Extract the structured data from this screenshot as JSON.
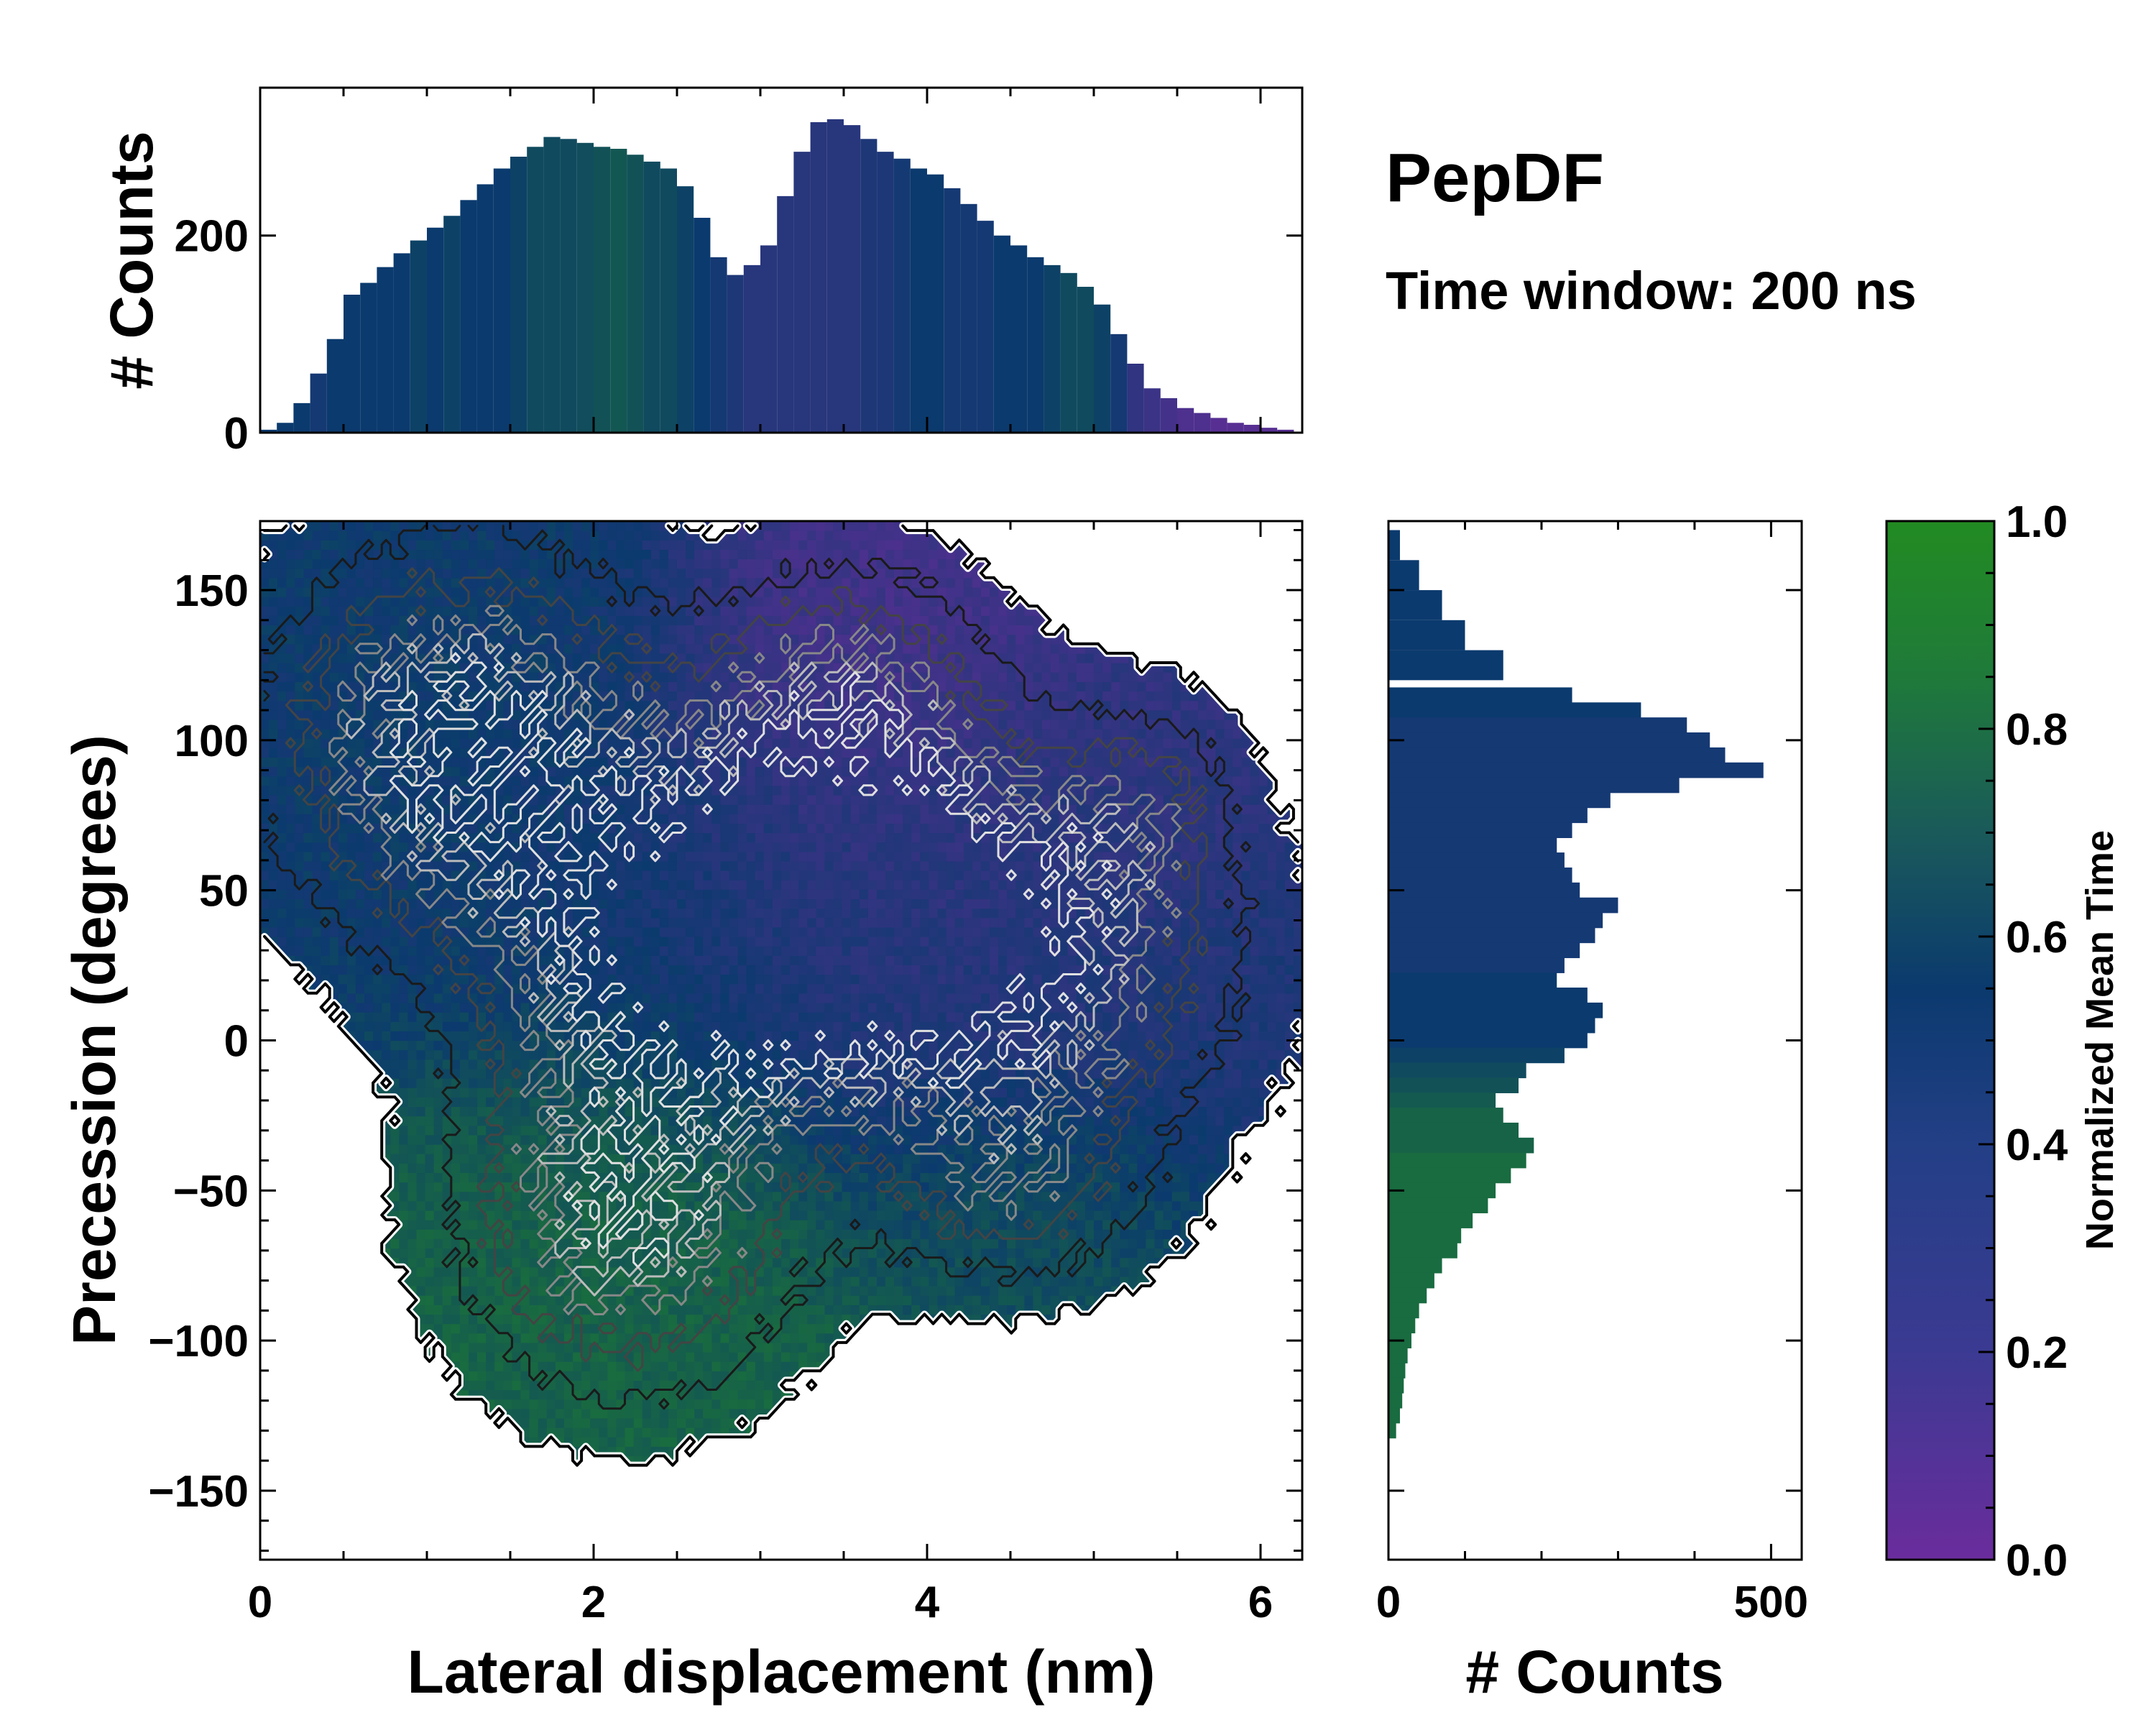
{
  "title": "PepDF",
  "subtitle": "Time window: 200 ns",
  "colors": {
    "low": "#6a2c9c",
    "mid": "#0b3a6e",
    "high": "#228b22",
    "contour_dark": "#000000",
    "contour_light": "#d0d0d0"
  },
  "chart_data": [
    {
      "id": "top-histogram",
      "type": "bar",
      "xlabel": "",
      "ylabel": "# Counts",
      "xlim": [
        0,
        6.25
      ],
      "ylim": [
        0,
        350
      ],
      "yticks": [
        0,
        200
      ],
      "bin_width": 0.05,
      "x": [
        0.05,
        0.15,
        0.25,
        0.35,
        0.45,
        0.55,
        0.65,
        0.75,
        0.85,
        0.95,
        1.05,
        1.15,
        1.25,
        1.35,
        1.45,
        1.55,
        1.65,
        1.75,
        1.85,
        1.95,
        2.05,
        2.15,
        2.25,
        2.35,
        2.45,
        2.55,
        2.65,
        2.75,
        2.85,
        2.95,
        3.05,
        3.15,
        3.25,
        3.35,
        3.45,
        3.55,
        3.65,
        3.75,
        3.85,
        3.95,
        4.05,
        4.15,
        4.25,
        4.35,
        4.45,
        4.55,
        4.65,
        4.75,
        4.85,
        4.95,
        5.05,
        5.15,
        5.25,
        5.35,
        5.45,
        5.55,
        5.65,
        5.75,
        5.85,
        5.95,
        6.05,
        6.15
      ],
      "values": [
        3,
        10,
        30,
        60,
        95,
        140,
        152,
        168,
        182,
        195,
        208,
        220,
        236,
        252,
        268,
        280,
        290,
        300,
        298,
        294,
        290,
        288,
        282,
        275,
        268,
        250,
        218,
        178,
        160,
        170,
        190,
        240,
        285,
        315,
        318,
        312,
        298,
        285,
        278,
        268,
        262,
        248,
        232,
        215,
        200,
        190,
        178,
        170,
        162,
        148,
        130,
        100,
        70,
        45,
        35,
        25,
        20,
        15,
        10,
        8,
        5,
        3
      ],
      "color_values": [
        0.5,
        0.5,
        0.5,
        0.45,
        0.5,
        0.5,
        0.5,
        0.5,
        0.5,
        0.55,
        0.5,
        0.55,
        0.5,
        0.5,
        0.5,
        0.55,
        0.6,
        0.6,
        0.6,
        0.62,
        0.65,
        0.68,
        0.65,
        0.6,
        0.6,
        0.55,
        0.5,
        0.45,
        0.4,
        0.35,
        0.35,
        0.35,
        0.35,
        0.35,
        0.35,
        0.35,
        0.4,
        0.4,
        0.45,
        0.5,
        0.5,
        0.45,
        0.45,
        0.45,
        0.5,
        0.5,
        0.5,
        0.55,
        0.6,
        0.6,
        0.55,
        0.45,
        0.3,
        0.25,
        0.2,
        0.15,
        0.15,
        0.1,
        0.1,
        0.1,
        0.1,
        0.1
      ]
    },
    {
      "id": "main-heatmap",
      "type": "heatmap",
      "xlabel": "Lateral displacement (nm)",
      "ylabel": "Precession (degrees)",
      "xlim": [
        0,
        6.25
      ],
      "ylim": [
        -173,
        173
      ],
      "xticks": [
        0,
        2,
        4,
        6
      ],
      "yticks": [
        -150,
        -100,
        -50,
        0,
        50,
        100,
        150
      ],
      "colormap_field": "Normalized Mean Time",
      "clusters": [
        {
          "x": 1.2,
          "y": 100,
          "sx": 0.8,
          "sy": 45,
          "time": 0.5,
          "weight": 1.0
        },
        {
          "x": 3.6,
          "y": 50,
          "sx": 0.9,
          "sy": 40,
          "time": 0.3,
          "weight": 1.0
        },
        {
          "x": 3.5,
          "y": 120,
          "sx": 0.6,
          "sy": 30,
          "time": 0.2,
          "weight": 0.6
        },
        {
          "x": 2.2,
          "y": -60,
          "sx": 0.7,
          "sy": 40,
          "time": 0.75,
          "weight": 0.9
        },
        {
          "x": 4.6,
          "y": 20,
          "sx": 0.9,
          "sy": 40,
          "time": 0.4,
          "weight": 0.7
        },
        {
          "x": 4.5,
          "y": -50,
          "sx": 0.6,
          "sy": 25,
          "time": 0.65,
          "weight": 0.5
        },
        {
          "x": 5.3,
          "y": 80,
          "sx": 0.4,
          "sy": 25,
          "time": 0.3,
          "weight": 0.4
        },
        {
          "x": 2.5,
          "y": 30,
          "sx": 0.8,
          "sy": 40,
          "time": 0.5,
          "weight": 0.8
        }
      ]
    },
    {
      "id": "right-histogram",
      "type": "bar",
      "orientation": "horizontal",
      "xlabel": "# Counts",
      "ylabel": "",
      "xlim": [
        0,
        540
      ],
      "ylim": [
        -173,
        173
      ],
      "xticks": [
        0,
        500
      ],
      "bin_width": 5,
      "y": [
        165,
        155,
        145,
        135,
        125,
        115,
        110,
        105,
        100,
        95,
        90,
        85,
        80,
        75,
        70,
        65,
        60,
        55,
        50,
        45,
        40,
        35,
        30,
        25,
        20,
        15,
        10,
        5,
        0,
        -5,
        -10,
        -15,
        -20,
        -25,
        -30,
        -35,
        -40,
        -45,
        -50,
        -55,
        -60,
        -65,
        -70,
        -75,
        -80,
        -85,
        -90,
        -95,
        -100,
        -105,
        -110,
        -115,
        -120,
        -125,
        -130
      ],
      "values": [
        15,
        40,
        70,
        100,
        150,
        240,
        330,
        390,
        420,
        440,
        490,
        380,
        290,
        260,
        240,
        220,
        230,
        240,
        250,
        300,
        280,
        270,
        250,
        230,
        220,
        260,
        280,
        270,
        260,
        230,
        180,
        170,
        140,
        150,
        170,
        190,
        180,
        160,
        140,
        130,
        110,
        95,
        90,
        70,
        60,
        50,
        40,
        35,
        30,
        25,
        22,
        20,
        18,
        15,
        10
      ],
      "color_values": [
        0.5,
        0.5,
        0.5,
        0.5,
        0.5,
        0.5,
        0.5,
        0.45,
        0.45,
        0.45,
        0.45,
        0.45,
        0.45,
        0.45,
        0.45,
        0.45,
        0.45,
        0.45,
        0.45,
        0.45,
        0.45,
        0.45,
        0.45,
        0.45,
        0.5,
        0.5,
        0.5,
        0.5,
        0.5,
        0.55,
        0.6,
        0.65,
        0.7,
        0.75,
        0.75,
        0.75,
        0.8,
        0.8,
        0.8,
        0.8,
        0.8,
        0.8,
        0.8,
        0.8,
        0.8,
        0.8,
        0.8,
        0.8,
        0.8,
        0.8,
        0.8,
        0.8,
        0.8,
        0.8,
        0.8
      ]
    },
    {
      "id": "colorbar",
      "type": "colorbar",
      "label": "Normalized Mean Time",
      "range": [
        0,
        1
      ],
      "ticks": [
        0.0,
        0.2,
        0.4,
        0.6,
        0.8,
        1.0
      ],
      "tick_labels": [
        "0.0",
        "0.2",
        "0.4",
        "0.6",
        "0.8",
        "1.0"
      ]
    }
  ]
}
